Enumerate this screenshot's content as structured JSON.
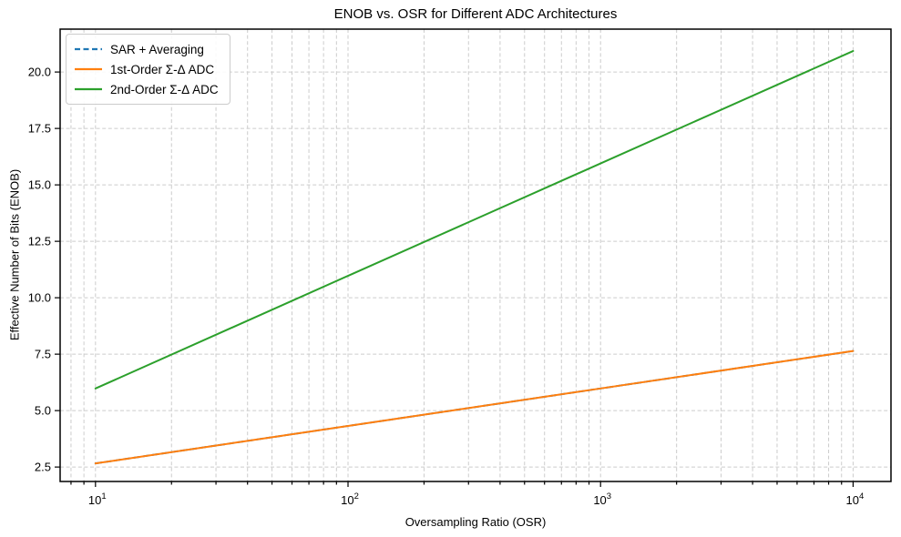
{
  "chart_data": {
    "type": "line",
    "title": "ENOB vs. OSR for Different ADC Architectures",
    "xlabel": "Oversampling Ratio (OSR)",
    "ylabel": "Effective Number of Bits (ENOB)",
    "x_scale": "log10",
    "xlim_log10": [
      0.86,
      4.15
    ],
    "ylim": [
      1.86,
      21.9
    ],
    "x": [
      10,
      100,
      1000,
      10000
    ],
    "xticks": [
      {
        "value": 10,
        "base": "10",
        "exp": "1"
      },
      {
        "value": 100,
        "base": "10",
        "exp": "2"
      },
      {
        "value": 1000,
        "base": "10",
        "exp": "3"
      },
      {
        "value": 10000,
        "base": "10",
        "exp": "4"
      }
    ],
    "x_minor_ticks": [
      8,
      9,
      20,
      30,
      40,
      50,
      60,
      70,
      80,
      90,
      200,
      300,
      400,
      500,
      600,
      700,
      800,
      900,
      2000,
      3000,
      4000,
      5000,
      6000,
      7000,
      8000,
      9000
    ],
    "yticks": [
      2.5,
      5.0,
      7.5,
      10.0,
      12.5,
      15.0,
      17.5,
      20.0
    ],
    "ytick_labels": [
      "2.5",
      "5.0",
      "7.5",
      "10.0",
      "12.5",
      "15.0",
      "17.5",
      "20.0"
    ],
    "series": [
      {
        "name": "SAR + Averaging",
        "color": "#1f77b4",
        "line_style": "dashed",
        "line_width": 2,
        "values": [
          2.66,
          4.32,
          5.98,
          7.64
        ]
      },
      {
        "name": "1st-Order Σ-Δ ADC",
        "color": "#ff7f0e",
        "line_style": "solid",
        "line_width": 2,
        "values": [
          2.66,
          4.32,
          5.98,
          7.64
        ]
      },
      {
        "name": "2nd-Order Σ-Δ ADC",
        "color": "#2ca02c",
        "line_style": "solid",
        "line_width": 2,
        "values": [
          5.98,
          10.97,
          15.95,
          20.93
        ]
      }
    ],
    "grid": {
      "which": "both",
      "color": "#cccccc",
      "style": "dashed"
    },
    "legend": {
      "position": "upper-left",
      "border_color": "#cccccc",
      "background": "#ffffff"
    },
    "spine_color": "#000000",
    "tick_color": "#000000"
  }
}
